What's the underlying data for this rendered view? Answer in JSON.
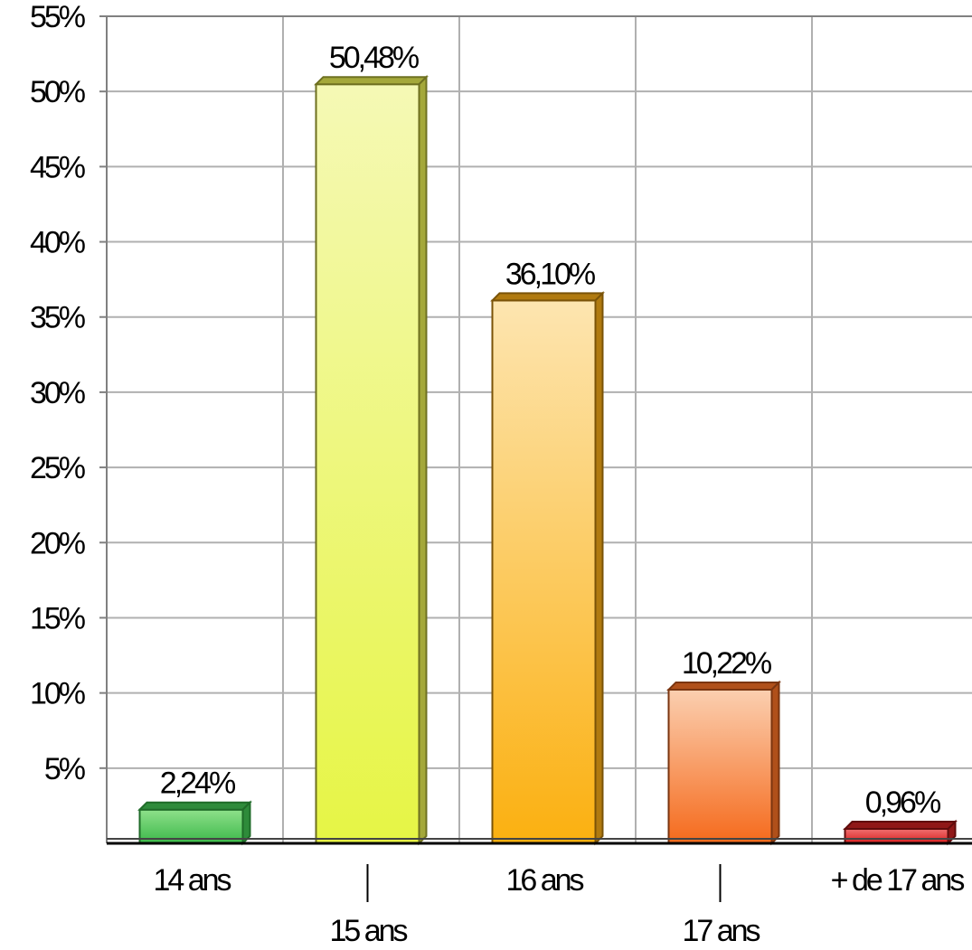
{
  "chart_data": {
    "type": "bar",
    "categories": [
      "14 ans",
      "15 ans",
      "16 ans",
      "17 ans",
      "+ de 17 ans"
    ],
    "values": [
      2.24,
      50.48,
      36.1,
      10.22,
      0.96
    ],
    "data_labels": [
      "2,24%",
      "50,48%",
      "36,10%",
      "10,22%",
      "0,96%"
    ],
    "ylim": [
      0,
      55
    ],
    "yticks": [
      5,
      10,
      15,
      20,
      25,
      30,
      35,
      40,
      45,
      50,
      55
    ],
    "ytick_labels": [
      "5%",
      "10%",
      "15%",
      "20%",
      "25%",
      "30%",
      "35%",
      "40%",
      "45%",
      "50%",
      "55%"
    ],
    "grid": true,
    "bar_style": "3d",
    "colors": [
      {
        "top": "#8ee08a",
        "bottom": "#3cb84a",
        "side": "#2e8b3a",
        "stroke": "#1f6b28"
      },
      {
        "top": "#f5f9b5",
        "bottom": "#e6f545",
        "side": "#a4a83a",
        "stroke": "#6e7020"
      },
      {
        "top": "#fde5b0",
        "bottom": "#fbb010",
        "side": "#b07a10",
        "stroke": "#7a5308"
      },
      {
        "top": "#fbcfb0",
        "bottom": "#f56a1c",
        "side": "#b0501a",
        "stroke": "#7a3510"
      },
      {
        "top": "#f07070",
        "bottom": "#d82020",
        "side": "#901818",
        "stroke": "#600c0c"
      }
    ]
  }
}
